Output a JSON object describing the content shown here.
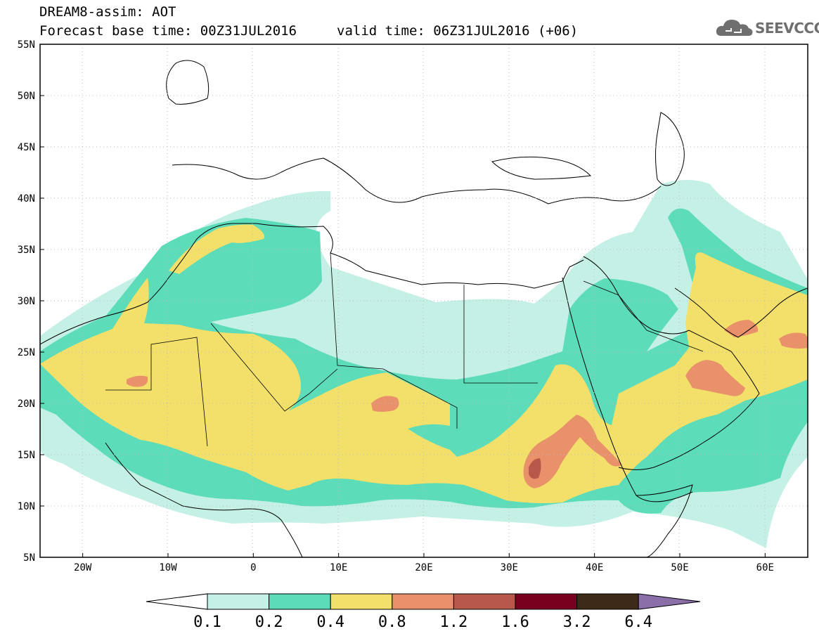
{
  "header": {
    "title": "DREAM8-assim: AOT",
    "base_time": "Forecast base time: 00Z31JUL2016",
    "valid_time": "valid time: 06Z31JUL2016 (+06)"
  },
  "logo": {
    "text": "SEEVCCC",
    "icon": "cloud-icon"
  },
  "map": {
    "lon_labels": [
      "20W",
      "10W",
      "0",
      "10E",
      "20E",
      "30E",
      "40E",
      "50E",
      "60E"
    ],
    "lat_labels": [
      "55N",
      "50N",
      "45N",
      "40N",
      "35N",
      "30N",
      "25N",
      "20N",
      "15N",
      "10N",
      "5N"
    ],
    "lon_range": [
      -25,
      65
    ],
    "lat_range": [
      5,
      55
    ]
  },
  "colorbar": {
    "labels": [
      "0.1",
      "0.2",
      "0.4",
      "0.8",
      "1.2",
      "1.6",
      "3.2",
      "6.4"
    ],
    "colors": [
      "#ffffff",
      "#c4f0e6",
      "#5cdcb8",
      "#f3e06a",
      "#e8916a",
      "#b7584b",
      "#7a0020",
      "#3d2a18",
      "#8a6fa8"
    ]
  },
  "legend_colors": {
    "c01": "#c4f0e6",
    "c02": "#5cdcb8",
    "c04": "#f3e06a",
    "c08": "#e8916a",
    "c12": "#b7584b",
    "c16": "#7a0020"
  }
}
